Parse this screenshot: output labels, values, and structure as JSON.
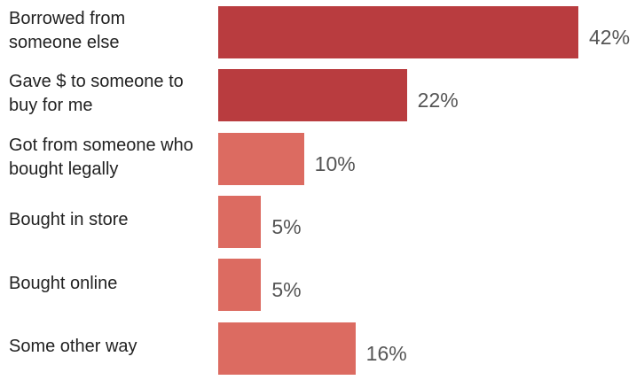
{
  "chart_data": {
    "type": "barh",
    "categories": [
      "Borrowed from someone else",
      "Gave $ to someone to buy for me",
      "Got from someone who bought legally",
      "Bought in store",
      "Bought online",
      "Some other way"
    ],
    "values": [
      42,
      22,
      10,
      5,
      5,
      16
    ],
    "value_labels": [
      "42%",
      "22%",
      "10%",
      "5%",
      "5%",
      "16%"
    ],
    "colors": [
      "#b93c3f",
      "#b93c3f",
      "#dc6b61",
      "#dc6b61",
      "#dc6b61",
      "#dc6b61"
    ]
  }
}
